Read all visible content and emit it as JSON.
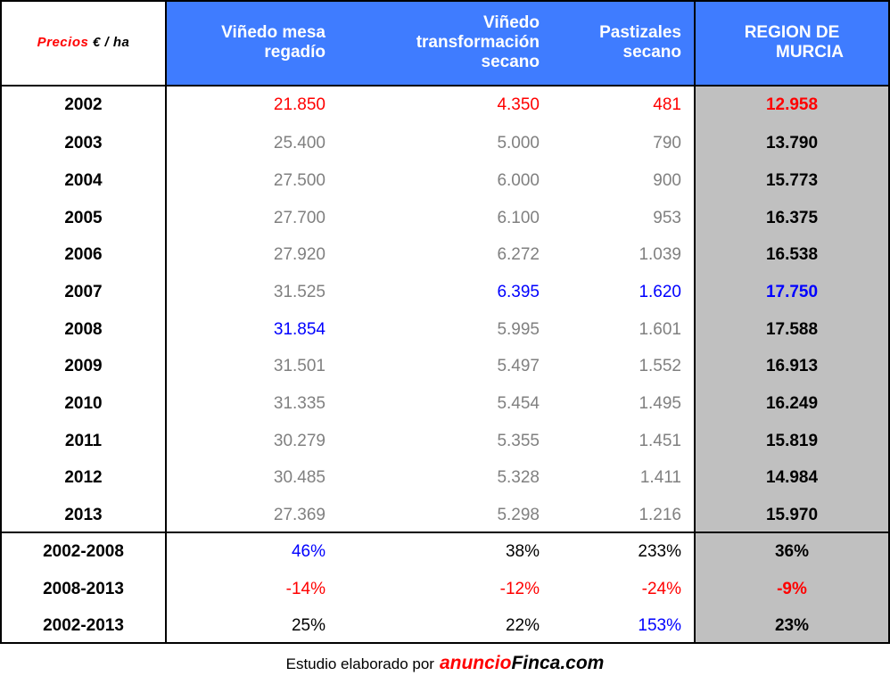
{
  "colors": {
    "header_blue": "#3f7cff",
    "region_gray": "#c0c0c0",
    "value_gray": "#808080",
    "highlight_red": "#ff0000",
    "highlight_blue": "#0000ff"
  },
  "header": {
    "corner_label": "Precios",
    "corner_unit": "€ / ha",
    "col1": [
      "Viñedo mesa",
      "regadío"
    ],
    "col2": [
      "Viñedo",
      "transformación",
      "secano"
    ],
    "col3": [
      "Pastizales",
      "secano"
    ],
    "col4": [
      "REGION DE",
      "MURCIA"
    ]
  },
  "rows": [
    {
      "year": "2002",
      "v1": "21.850",
      "v2": "4.350",
      "v3": "481",
      "v4": "12.958"
    },
    {
      "year": "2003",
      "v1": "25.400",
      "v2": "5.000",
      "v3": "790",
      "v4": "13.790"
    },
    {
      "year": "2004",
      "v1": "27.500",
      "v2": "6.000",
      "v3": "900",
      "v4": "15.773"
    },
    {
      "year": "2005",
      "v1": "27.700",
      "v2": "6.100",
      "v3": "953",
      "v4": "16.375"
    },
    {
      "year": "2006",
      "v1": "27.920",
      "v2": "6.272",
      "v3": "1.039",
      "v4": "16.538"
    },
    {
      "year": "2007",
      "v1": "31.525",
      "v2": "6.395",
      "v3": "1.620",
      "v4": "17.750"
    },
    {
      "year": "2008",
      "v1": "31.854",
      "v2": "5.995",
      "v3": "1.601",
      "v4": "17.588"
    },
    {
      "year": "2009",
      "v1": "31.501",
      "v2": "5.497",
      "v3": "1.552",
      "v4": "16.913"
    },
    {
      "year": "2010",
      "v1": "31.335",
      "v2": "5.454",
      "v3": "1.495",
      "v4": "16.249"
    },
    {
      "year": "2011",
      "v1": "30.279",
      "v2": "5.355",
      "v3": "1.451",
      "v4": "15.819"
    },
    {
      "year": "2012",
      "v1": "30.485",
      "v2": "5.328",
      "v3": "1.411",
      "v4": "14.984"
    },
    {
      "year": "2013",
      "v1": "27.369",
      "v2": "5.298",
      "v3": "1.216",
      "v4": "15.970"
    }
  ],
  "changes": [
    {
      "period": "2002-2008",
      "v1": "46%",
      "v2": "38%",
      "v3": "233%",
      "v4": "36%"
    },
    {
      "period": "2008-2013",
      "v1": "-14%",
      "v2": "-12%",
      "v3": "-24%",
      "v4": "-9%"
    },
    {
      "period": "2002-2013",
      "v1": "25%",
      "v2": "22%",
      "v3": "153%",
      "v4": "23%"
    }
  ],
  "footer": {
    "text": "Estudio elaborado por",
    "brand_a": "anuncio",
    "brand_b": "Finca.com"
  }
}
